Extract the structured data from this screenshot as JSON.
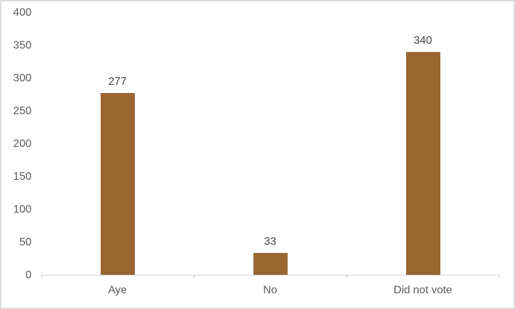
{
  "chart_data": {
    "type": "bar",
    "title": "",
    "xlabel": "",
    "ylabel": "",
    "categories": [
      "Aye",
      "No",
      "Did not vote"
    ],
    "values": [
      277,
      33,
      340
    ],
    "data_labels": [
      "277",
      "33",
      "340"
    ],
    "ylim": [
      0,
      400
    ],
    "ytick_step": 50,
    "yticks": [
      0,
      50,
      100,
      150,
      200,
      250,
      300,
      350,
      400
    ],
    "grid": false,
    "legend": false,
    "colors": {
      "bar": "#9A6733",
      "axis_line": "#D0D0D0",
      "tick_label": "#595959",
      "category_label": "#595959",
      "data_label": "#404040",
      "background": "#FFFFFF",
      "border": "#DCDCDC"
    }
  }
}
